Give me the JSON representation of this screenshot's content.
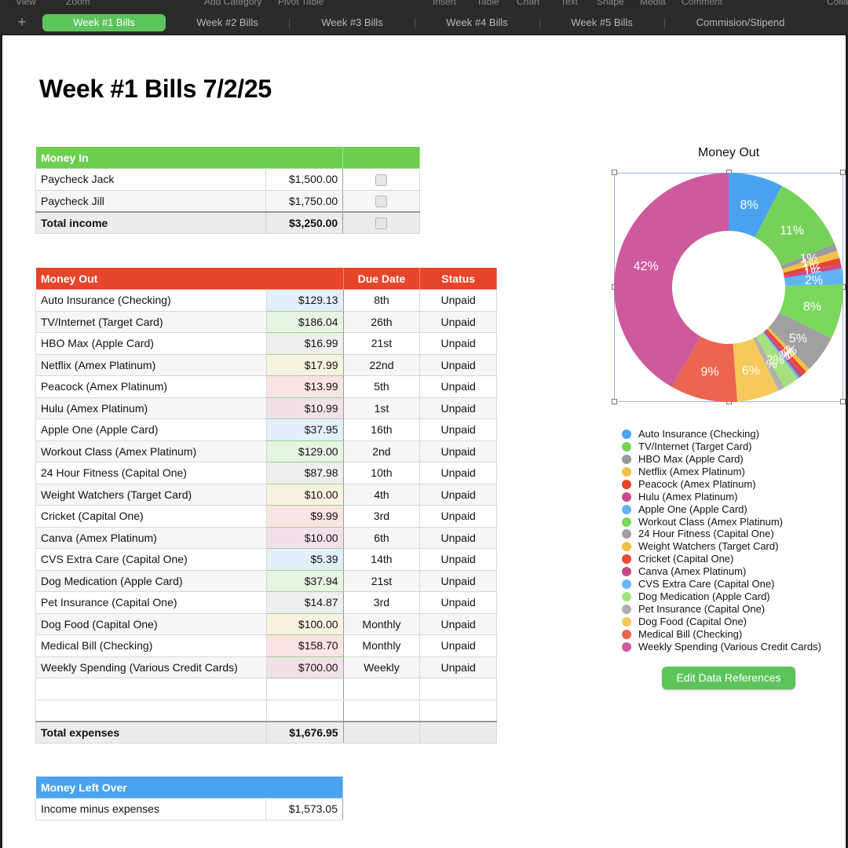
{
  "menu": [
    "View",
    "Zoom",
    "Add Category",
    "Pivot Table",
    "Insert",
    "Table",
    "Chart",
    "Text",
    "Shape",
    "Media",
    "Comment",
    "Colla"
  ],
  "tabs": [
    "Week #1 Bills",
    "Week #2 Bills",
    "Week #3 Bills",
    "Week #4 Bills",
    "Week #5 Bills",
    "Commision/Stipend"
  ],
  "add_tab_icon": "+",
  "page_title": "Week #1 Bills 7/2/25",
  "money_in": {
    "header": "Money In",
    "rows": [
      {
        "name": "Paycheck Jack",
        "amount": "$1,500.00",
        "checked": false
      },
      {
        "name": "Paycheck Jill",
        "amount": "$1,750.00",
        "checked": false
      }
    ],
    "total_label": "Total income",
    "total_amount": "$3,250.00"
  },
  "money_out": {
    "header": "Money Out",
    "due_header": "Due Date",
    "status_header": "Status",
    "rows": [
      {
        "name": "Auto Insurance (Checking)",
        "amount": "$129.13",
        "due": "8th",
        "status": "Unpaid",
        "tint": "#e3effb"
      },
      {
        "name": "TV/Internet (Target Card)",
        "amount": "$186.04",
        "due": "26th",
        "status": "Unpaid",
        "tint": "#e6f5e2"
      },
      {
        "name": "HBO Max (Apple Card)",
        "amount": "$16.99",
        "due": "21st",
        "status": "Unpaid",
        "tint": "#efefef"
      },
      {
        "name": "Netflix (Amex Platinum)",
        "amount": "$17.99",
        "due": "22nd",
        "status": "Unpaid",
        "tint": "#f8f3df"
      },
      {
        "name": "Peacock (Amex Platinum)",
        "amount": "$13.99",
        "due": "5th",
        "status": "Unpaid",
        "tint": "#fbe4e2"
      },
      {
        "name": "Hulu (Amex Platinum)",
        "amount": "$10.99",
        "due": "1st",
        "status": "Unpaid",
        "tint": "#f3e1ea"
      },
      {
        "name": "Apple One (Apple Card)",
        "amount": "$37.95",
        "due": "16th",
        "status": "Unpaid",
        "tint": "#e3effb"
      },
      {
        "name": "Workout Class (Amex Platinum)",
        "amount": "$129.00",
        "due": "2nd",
        "status": "Unpaid",
        "tint": "#e6f5e2"
      },
      {
        "name": "24 Hour Fitness (Capital One)",
        "amount": "$87.98",
        "due": "10th",
        "status": "Unpaid",
        "tint": "#efefef"
      },
      {
        "name": "Weight Watchers (Target Card)",
        "amount": "$10.00",
        "due": "4th",
        "status": "Unpaid",
        "tint": "#f8f3df"
      },
      {
        "name": "Cricket (Capital One)",
        "amount": "$9.99",
        "due": "3rd",
        "status": "Unpaid",
        "tint": "#fbe4e2"
      },
      {
        "name": "Canva (Amex Platinum)",
        "amount": "$10.00",
        "due": "6th",
        "status": "Unpaid",
        "tint": "#f3e1ea"
      },
      {
        "name": "CVS Extra Care (Capital One)",
        "amount": "$5.39",
        "due": "14th",
        "status": "Unpaid",
        "tint": "#e3effb"
      },
      {
        "name": "Dog Medication (Apple Card)",
        "amount": "$37.94",
        "due": "21st",
        "status": "Unpaid",
        "tint": "#e6f5e2"
      },
      {
        "name": "Pet Insurance (Capital One)",
        "amount": "$14.87",
        "due": "3rd",
        "status": "Unpaid",
        "tint": "#efefef"
      },
      {
        "name": "Dog Food (Capital One)",
        "amount": "$100.00",
        "due": "Monthly",
        "status": "Unpaid",
        "tint": "#f8f3df"
      },
      {
        "name": "Medical Bill (Checking)",
        "amount": "$158.70",
        "due": "Monthly",
        "status": "Unpaid",
        "tint": "#fbe4e2"
      },
      {
        "name": "Weekly Spending (Various Credit Cards)",
        "amount": "$700.00",
        "due": "Weekly",
        "status": "Unpaid",
        "tint": "#f3e1ea"
      }
    ],
    "total_label": "Total expenses",
    "total_amount": "$1,676.95"
  },
  "left_over": {
    "header": "Money Left Over",
    "label": "Income minus expenses",
    "amount": "$1,573.05"
  },
  "edit_button_label": "Edit Data References",
  "colors": {
    "tab_active": "#5dc45c",
    "money_in_header": "#6ccf4f",
    "money_out_header": "#e8442b",
    "left_over_header": "#4aa3f0"
  },
  "chart_data": {
    "type": "pie",
    "title": "Money Out",
    "donut": true,
    "legend_position": "bottom",
    "slices": [
      {
        "label": "Auto Insurance (Checking)",
        "value": 129.13,
        "pct_label": "8%",
        "color": "#4aa3f0"
      },
      {
        "label": "TV/Internet (Target Card)",
        "value": 186.04,
        "pct_label": "11%",
        "color": "#77d159"
      },
      {
        "label": "HBO Max (Apple Card)",
        "value": 16.99,
        "pct_label": "1%",
        "color": "#9a9a9a"
      },
      {
        "label": "Netflix (Amex Platinum)",
        "value": 17.99,
        "pct_label": "1%",
        "color": "#f4c04a"
      },
      {
        "label": "Peacock (Amex Platinum)",
        "value": 13.99,
        "pct_label": "1%",
        "color": "#e8442b"
      },
      {
        "label": "Hulu (Amex Platinum)",
        "value": 10.99,
        "pct_label": "1%",
        "color": "#c94a8a"
      },
      {
        "label": "Apple One (Apple Card)",
        "value": 37.95,
        "pct_label": "2%",
        "color": "#5fb5f2"
      },
      {
        "label": "Workout Class (Amex Platinum)",
        "value": 129.0,
        "pct_label": "8%",
        "color": "#7bd65c"
      },
      {
        "label": "24 Hour Fitness (Capital One)",
        "value": 87.98,
        "pct_label": "5%",
        "color": "#a0a0a0"
      },
      {
        "label": "Weight Watchers (Target Card)",
        "value": 10.0,
        "pct_label": "1%",
        "color": "#f2c048"
      },
      {
        "label": "Cricket (Capital One)",
        "value": 9.99,
        "pct_label": "1%",
        "color": "#e84a30"
      },
      {
        "label": "Canva (Amex Platinum)",
        "value": 10.0,
        "pct_label": "1%",
        "color": "#c24a88"
      },
      {
        "label": "CVS Extra Care (Capital One)",
        "value": 5.39,
        "pct_label": "0%",
        "color": "#66b8f4"
      },
      {
        "label": "Dog Medication (Apple Card)",
        "value": 37.94,
        "pct_label": "2%",
        "color": "#a6e07e"
      },
      {
        "label": "Pet Insurance (Capital One)",
        "value": 14.87,
        "pct_label": "1%",
        "color": "#b0b0b0"
      },
      {
        "label": "Dog Food (Capital One)",
        "value": 100.0,
        "pct_label": "6%",
        "color": "#f5c95a"
      },
      {
        "label": "Medical Bill (Checking)",
        "value": 158.7,
        "pct_label": "9%",
        "color": "#ec6550"
      },
      {
        "label": "Weekly Spending (Various Credit Cards)",
        "value": 700.0,
        "pct_label": "42%",
        "color": "#ce5a9e"
      }
    ]
  }
}
